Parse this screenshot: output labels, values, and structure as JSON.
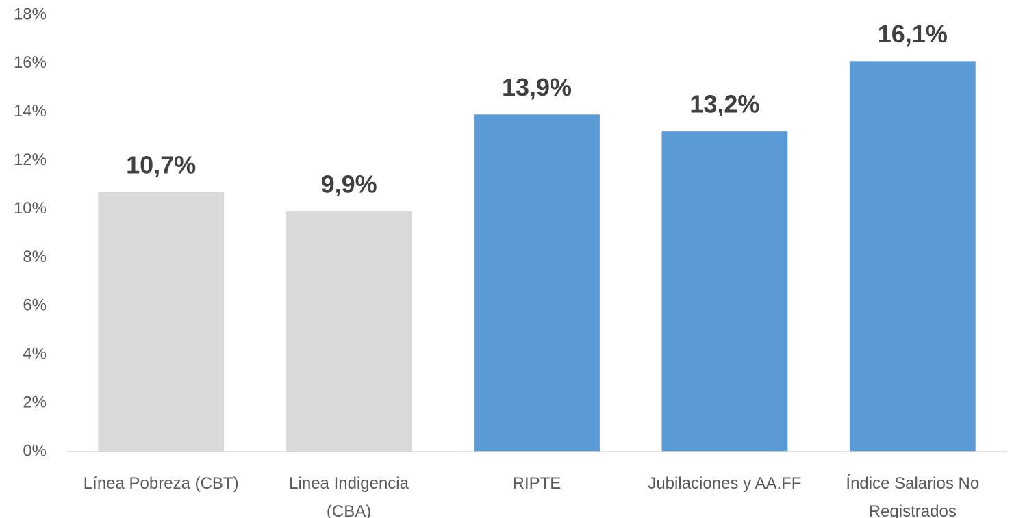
{
  "chart_data": {
    "type": "bar",
    "categories": [
      "Línea Pobreza (CBT)",
      "Linea Indigencia\n(CBA)",
      "RIPTE",
      "Jubilaciones y AA.FF",
      "Índice Salarios No\nRegistrados"
    ],
    "values": [
      10.7,
      9.9,
      13.9,
      13.2,
      16.1
    ],
    "value_labels": [
      "10,7%",
      "9,9%",
      "13,9%",
      "13,2%",
      "16,1%"
    ],
    "colors": [
      "#d9d9d9",
      "#d9d9d9",
      "#5b9bd5",
      "#5b9bd5",
      "#5b9bd5"
    ],
    "ylim": [
      0,
      18
    ],
    "yticks": [
      {
        "value": 0,
        "label": "0%"
      },
      {
        "value": 2,
        "label": "2%"
      },
      {
        "value": 4,
        "label": "4%"
      },
      {
        "value": 6,
        "label": "6%"
      },
      {
        "value": 8,
        "label": "8%"
      },
      {
        "value": 10,
        "label": "10%"
      },
      {
        "value": 12,
        "label": "12%"
      },
      {
        "value": 14,
        "label": "14%"
      },
      {
        "value": 16,
        "label": "16%"
      },
      {
        "value": 18,
        "label": "18%"
      }
    ],
    "grid": false
  }
}
